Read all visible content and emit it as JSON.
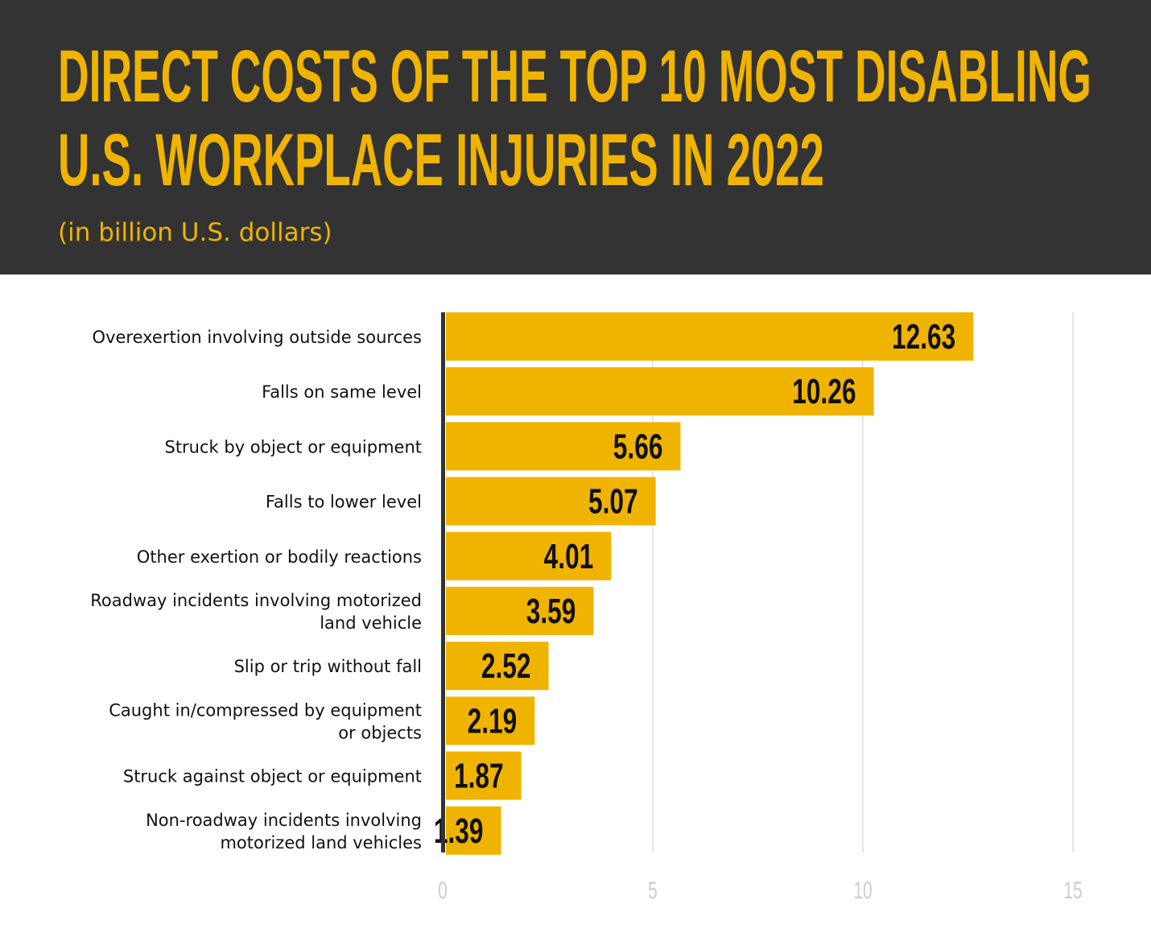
{
  "colors": {
    "header_bg": "#333333",
    "title": "#f0b400",
    "bar": "#f0b400",
    "axis": "#333333",
    "grid": "#e6e6e6",
    "tick": "#cccccc"
  },
  "chart_data": {
    "type": "bar",
    "orientation": "horizontal",
    "title_lines": [
      "DIRECT COSTS OF THE TOP 10 MOST DISABLING",
      "U.S. WORKPLACE INJURIES IN 2022"
    ],
    "subtitle": "(in billion U.S. dollars)",
    "categories": [
      [
        "Overexertion involving outside sources"
      ],
      [
        "Falls on same level"
      ],
      [
        "Struck by object or equipment"
      ],
      [
        "Falls to lower level"
      ],
      [
        "Other exertion or bodily reactions"
      ],
      [
        "Roadway incidents involving motorized",
        "land vehicle"
      ],
      [
        "Slip or trip without fall"
      ],
      [
        "Caught in/compressed by equipment",
        "or objects"
      ],
      [
        "Struck against object or equipment"
      ],
      [
        "Non-roadway incidents involving",
        "motorized land vehicles"
      ]
    ],
    "values": [
      12.63,
      10.26,
      5.66,
      5.07,
      4.01,
      3.59,
      2.52,
      2.19,
      1.87,
      1.39
    ],
    "data_labels": [
      "12.63",
      "10.26",
      "5.66",
      "5.07",
      "4.01",
      "3.59",
      "2.52",
      "2.19",
      "1.87",
      "1.39"
    ],
    "xlim": [
      0,
      15
    ],
    "xticks": [
      "0",
      "5",
      "10",
      "15"
    ],
    "grid": true
  }
}
